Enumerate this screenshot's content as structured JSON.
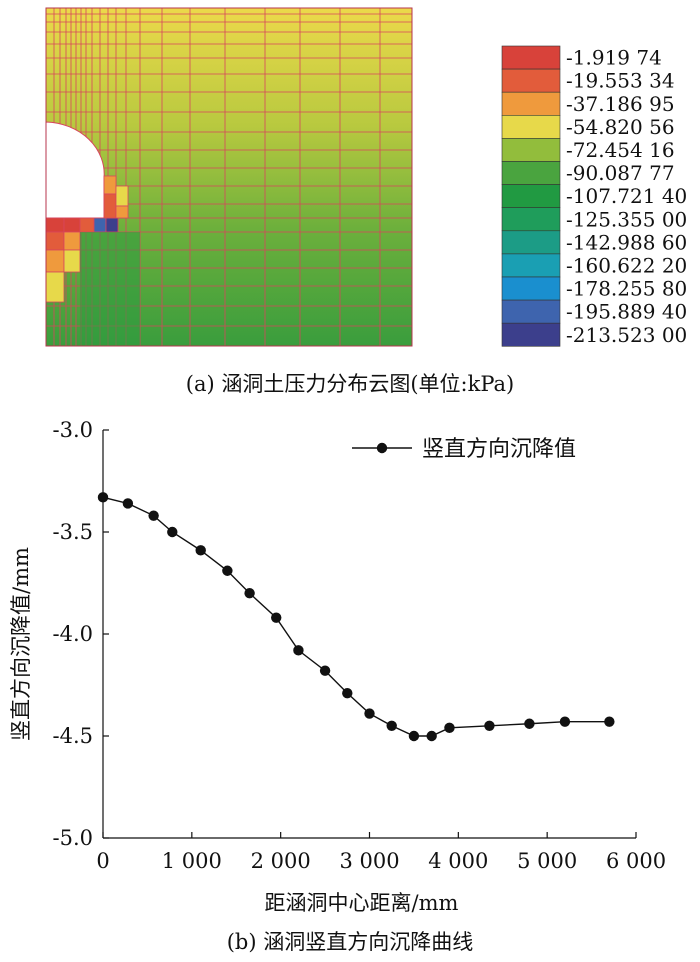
{
  "figure_a": {
    "caption": "(a) 涵洞土压力分布云图(单位:kPa)",
    "legend": [
      {
        "label": "-1.919 74",
        "color": "#d8423a"
      },
      {
        "label": "-19.553 34",
        "color": "#e25c3b"
      },
      {
        "label": "-37.186 95",
        "color": "#ef9a3d"
      },
      {
        "label": "-54.820 56",
        "color": "#e7d94a"
      },
      {
        "label": "-72.454 16",
        "color": "#92bd3c"
      },
      {
        "label": "-90.087 77",
        "color": "#4aa43f"
      },
      {
        "label": "-107.721 40",
        "color": "#219a42"
      },
      {
        "label": "-125.355 00",
        "color": "#1f9d5b"
      },
      {
        "label": "-142.988 60",
        "color": "#1c9c86"
      },
      {
        "label": "-160.622 20",
        "color": "#1a9fb3"
      },
      {
        "label": "-178.255 80",
        "color": "#1a8fcf"
      },
      {
        "label": "-195.889 40",
        "color": "#3e64ae"
      },
      {
        "label": "-213.523 00",
        "color": "#3c3f8c"
      }
    ]
  },
  "figure_b": {
    "caption": "(b) 涵洞竖直方向沉降曲线"
  },
  "chart_data": {
    "type": "line",
    "xlabel": "距涵洞中心距离/mm",
    "ylabel": "竖直方向沉降值/mm",
    "xlim": [
      0,
      6000
    ],
    "ylim": [
      -5.0,
      -3.0
    ],
    "xticks": [
      0,
      1000,
      2000,
      3000,
      4000,
      5000,
      6000
    ],
    "xtick_labels": [
      "0",
      "1 000",
      "2 000",
      "3 000",
      "4 000",
      "5 000",
      "6 000"
    ],
    "yticks": [
      -3.0,
      -3.5,
      -4.0,
      -4.5,
      -5.0
    ],
    "ytick_labels": [
      "-3.0",
      "-3.5",
      "-4.0",
      "-4.5",
      "-5.0"
    ],
    "grid": false,
    "legend_position": "top-right",
    "series": [
      {
        "name": "竖直方向沉降值",
        "color": "#111111",
        "x": [
          0,
          280,
          570,
          780,
          1100,
          1400,
          1650,
          1950,
          2200,
          2500,
          2750,
          3000,
          3250,
          3500,
          3700,
          3900,
          4350,
          4800,
          5200,
          5700
        ],
        "y": [
          -3.33,
          -3.36,
          -3.42,
          -3.5,
          -3.59,
          -3.69,
          -3.8,
          -3.92,
          -4.08,
          -4.18,
          -4.29,
          -4.39,
          -4.45,
          -4.5,
          -4.5,
          -4.46,
          -4.45,
          -4.44,
          -4.43,
          -4.43
        ]
      }
    ]
  }
}
